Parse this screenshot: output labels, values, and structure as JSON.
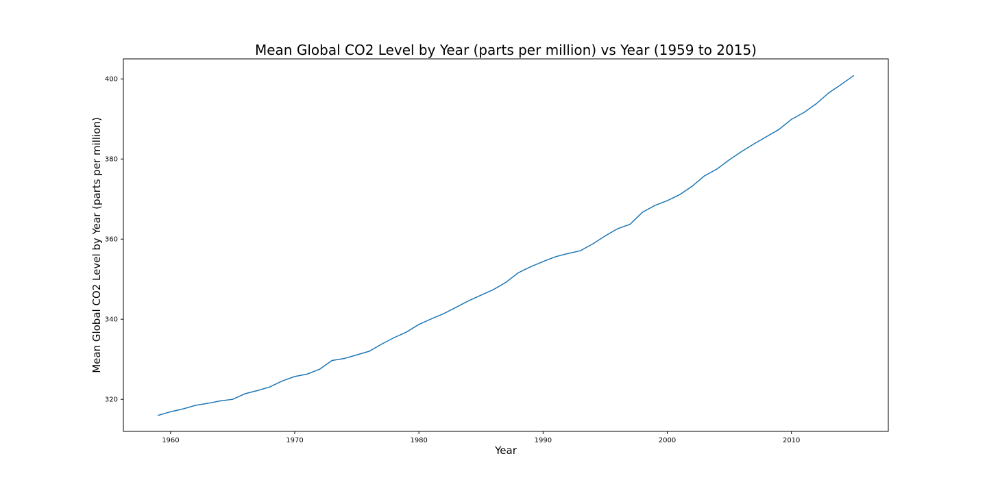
{
  "chart_data": {
    "type": "line",
    "title": "Mean Global CO2 Level by Year (parts per million) vs Year (1959 to 2015)",
    "xlabel": "Year",
    "ylabel": "Mean Global CO2 Level by Year (parts per million)",
    "xlim": [
      1956.2,
      2017.8
    ],
    "ylim": [
      312.0,
      405.0
    ],
    "xticks": [
      1960,
      1970,
      1980,
      1990,
      2000,
      2010
    ],
    "yticks": [
      320,
      340,
      360,
      380,
      400
    ],
    "xtick_labels": [
      "1960",
      "1970",
      "1980",
      "1990",
      "2000",
      "2010"
    ],
    "ytick_labels": [
      "320",
      "340",
      "360",
      "380",
      "400"
    ],
    "grid": false,
    "legend": false,
    "line_color": "#1f77b4",
    "series": [
      {
        "x": [
          1959,
          1960,
          1961,
          1962,
          1963,
          1964,
          1965,
          1966,
          1967,
          1968,
          1969,
          1970,
          1971,
          1972,
          1973,
          1974,
          1975,
          1976,
          1977,
          1978,
          1979,
          1980,
          1981,
          1982,
          1983,
          1984,
          1985,
          1986,
          1987,
          1988,
          1989,
          1990,
          1991,
          1992,
          1993,
          1994,
          1995,
          1996,
          1997,
          1998,
          1999,
          2000,
          2001,
          2002,
          2003,
          2004,
          2005,
          2006,
          2007,
          2008,
          2009,
          2010,
          2011,
          2012,
          2013,
          2014,
          2015
        ],
        "values": [
          316.0,
          316.9,
          317.6,
          318.5,
          319.0,
          319.6,
          320.0,
          321.4,
          322.2,
          323.1,
          324.6,
          325.7,
          326.3,
          327.5,
          329.7,
          330.2,
          331.1,
          332.0,
          333.8,
          335.4,
          336.8,
          338.7,
          340.1,
          341.4,
          343.0,
          344.6,
          346.0,
          347.4,
          349.2,
          351.6,
          353.1,
          354.4,
          355.6,
          356.4,
          357.1,
          358.8,
          360.8,
          362.6,
          363.7,
          366.7,
          368.4,
          369.6,
          371.1,
          373.2,
          375.8,
          377.5,
          379.8,
          381.9,
          383.8,
          385.6,
          387.4,
          389.9,
          391.6,
          393.8,
          396.5,
          398.6,
          400.8
        ]
      }
    ]
  }
}
